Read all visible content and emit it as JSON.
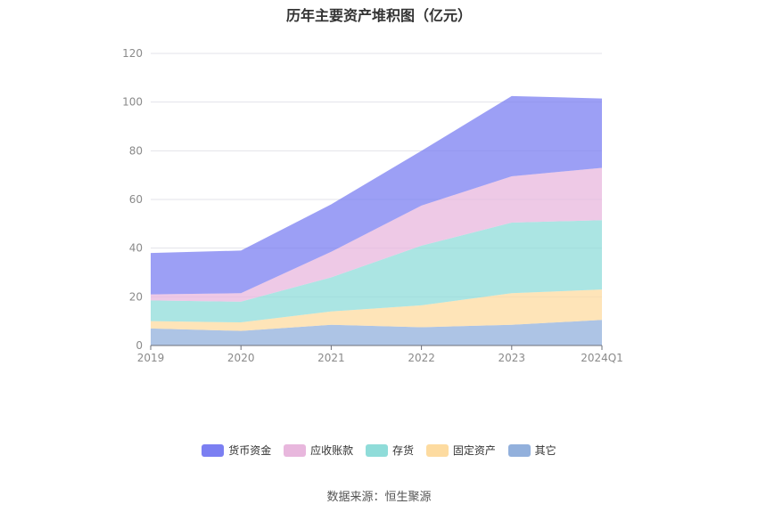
{
  "title": "历年主要资产堆积图（亿元）",
  "source": "数据来源：恒生聚源",
  "colors": {
    "货币资金": "#7b7ff2",
    "应收账款": "#e8b7dd",
    "存货": "#8fdcd9",
    "固定资产": "#fddba0",
    "其它": "#92b0dc"
  },
  "chart_data": {
    "type": "area",
    "stacked": true,
    "title": "历年主要资产堆积图（亿元）",
    "categories": [
      "2019",
      "2020",
      "2021",
      "2022",
      "2023",
      "2024Q1"
    ],
    "ylim": [
      0,
      120
    ],
    "yticks": [
      0,
      20,
      40,
      60,
      80,
      100,
      120
    ],
    "grid": true,
    "legend_position": "bottom",
    "series": [
      {
        "name": "其它",
        "values": [
          7.0,
          6.0,
          8.5,
          7.5,
          8.5,
          10.5
        ]
      },
      {
        "name": "固定资产",
        "values": [
          3.0,
          3.5,
          5.5,
          9.0,
          13.0,
          12.5
        ]
      },
      {
        "name": "存货",
        "values": [
          8.5,
          8.5,
          14.0,
          24.5,
          29.0,
          28.5
        ]
      },
      {
        "name": "应收账款",
        "values": [
          2.5,
          3.5,
          10.5,
          16.5,
          19.0,
          21.5
        ]
      },
      {
        "name": "货币资金",
        "values": [
          17.0,
          17.5,
          19.5,
          22.5,
          33.0,
          28.5
        ]
      }
    ],
    "legend_order": [
      "货币资金",
      "应收账款",
      "存货",
      "固定资产",
      "其它"
    ]
  }
}
